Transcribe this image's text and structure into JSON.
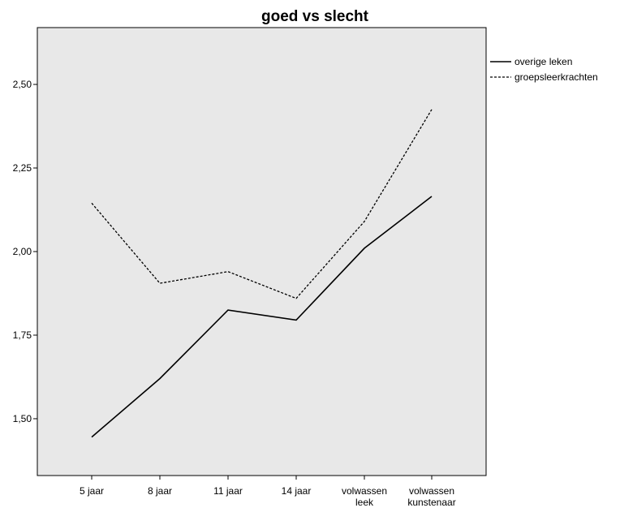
{
  "chart_data": {
    "type": "line",
    "title": "goed vs slecht",
    "xlabel": "",
    "ylabel": "",
    "categories": [
      [
        "5 jaar"
      ],
      [
        "8 jaar"
      ],
      [
        "11 jaar"
      ],
      [
        "14 jaar"
      ],
      [
        "volwassen",
        "leek"
      ],
      [
        "volwassen",
        "kunstenaar"
      ]
    ],
    "y_ticks": [
      "1,50",
      "1,75",
      "2,00",
      "2,25",
      "2,50"
    ],
    "y_tick_values": [
      1.5,
      1.75,
      2.0,
      2.25,
      2.5
    ],
    "ylim": [
      1.33,
      2.67
    ],
    "grid": false,
    "legend_position": "right",
    "background_color": "#e8e8e8",
    "series": [
      {
        "name": "overige leken",
        "style": "solid",
        "color": "#000000",
        "values": [
          1.445,
          1.62,
          1.825,
          1.795,
          2.01,
          2.165
        ]
      },
      {
        "name": "groepsleerkrachten",
        "style": "dashed",
        "color": "#000000",
        "values": [
          2.145,
          1.905,
          1.94,
          1.86,
          2.09,
          2.425
        ]
      }
    ]
  }
}
